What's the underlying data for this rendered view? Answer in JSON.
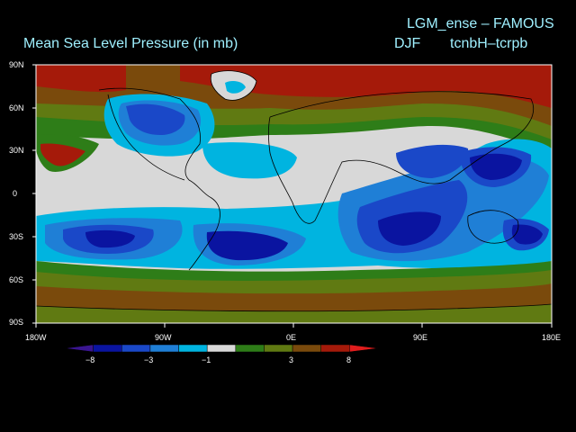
{
  "header": {
    "title": "Mean Sea Level Pressure (in mb)",
    "model": "LGM_ense – FAMOUS",
    "season": "DJF",
    "experiment": "tcnbH–tcrpb"
  },
  "map": {
    "lat_labels": [
      "90N",
      "60N",
      "30N",
      "0",
      "30S",
      "60S",
      "90S"
    ],
    "lon_labels": [
      "180W",
      "90W",
      "0E",
      "90E",
      "180E"
    ]
  },
  "colorbar": {
    "labels": [
      "−8",
      "−3",
      "−1",
      "3",
      "8"
    ],
    "colors": [
      "#3a1590",
      "#0a14a0",
      "#1a48c8",
      "#1f7fd6",
      "#00b4e0",
      "#d8d8d8",
      "#2e7d18",
      "#607a12",
      "#7a4a0c",
      "#a51a0a",
      "#e01d1d"
    ]
  }
}
